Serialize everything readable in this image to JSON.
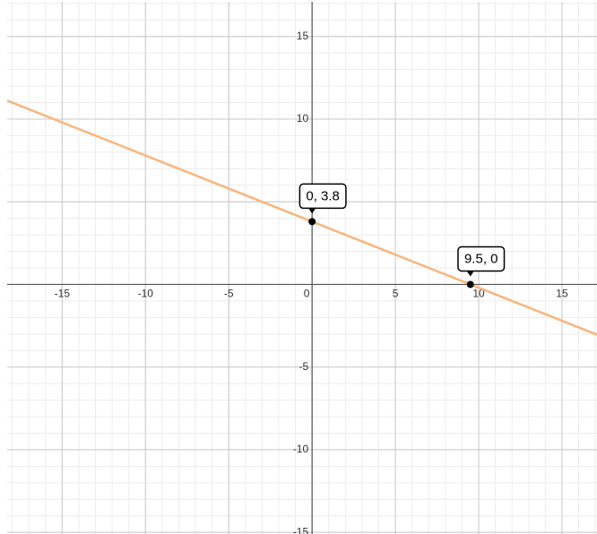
{
  "chart_data": {
    "type": "line",
    "x": [
      -18.3,
      0,
      9.5,
      17.1
    ],
    "series": [
      {
        "color": "#f8b67c",
        "values": [
          11.12,
          3.8,
          0,
          -3.04
        ]
      }
    ],
    "points": {
      "x": [
        0,
        9.5
      ],
      "values": [
        3.8,
        0
      ],
      "value_labels": [
        "0, 3.8",
        "9.5, 0"
      ],
      "color": "#000000"
    },
    "xlim": [
      -18.3,
      17.1
    ],
    "ylim": [
      -15.1,
      17.1
    ],
    "xticks": [
      -15,
      -10,
      -5,
      0,
      5,
      10,
      15
    ],
    "yticks": [
      -15,
      -10,
      -5,
      5,
      10,
      15
    ],
    "grid": true
  }
}
